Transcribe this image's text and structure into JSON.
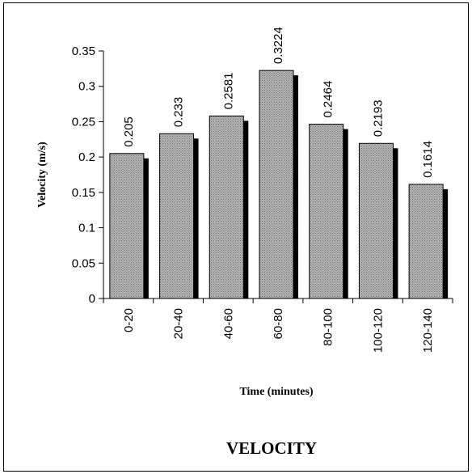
{
  "chart_data": {
    "type": "bar",
    "categories": [
      "0-20",
      "20-40",
      "40-60",
      "60-80",
      "80-100",
      "100-120",
      "120-140"
    ],
    "values": [
      0.205,
      0.233,
      0.2581,
      0.3224,
      0.2464,
      0.2193,
      0.1614
    ],
    "value_labels": [
      "0.205",
      "0.233",
      "0.2581",
      "0.3224",
      "0.2464",
      "0.2193",
      "0.1614"
    ],
    "title": "VELOCITY",
    "xlabel": "Time (minutes)",
    "ylabel": "Velocity (m/s)",
    "ylim": [
      0,
      0.35
    ],
    "yticks": [
      "0",
      "0.05",
      "0.1",
      "0.15",
      "0.2",
      "0.25",
      "0.3",
      "0.35"
    ],
    "grid": false,
    "legend": "none",
    "colors": {
      "bar_fill": "#a8a8a8",
      "bar_shadow": "#000000",
      "axis": "#000000"
    }
  }
}
